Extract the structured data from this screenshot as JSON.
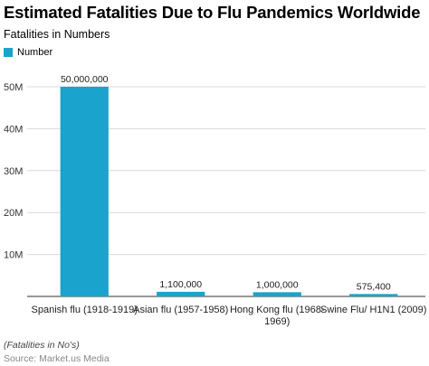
{
  "title": "Estimated Fatalities Due to Flu Pandemics Worldwide",
  "subtitle": "Fatalities in Numbers",
  "footnote": "(Fatalities in No's)",
  "source": "Source: Market.us Media",
  "colors": {
    "bar": "#1aa3cc",
    "grid": "#d9d9d9",
    "axis": "#333333"
  },
  "chart_data": {
    "type": "bar",
    "categories": [
      [
        "Spanish flu (1918-1919)"
      ],
      [
        "Asian flu (1957-1958)"
      ],
      [
        "Hong Kong flu (1968-",
        "1969)"
      ],
      [
        "Swine Flu/ H1N1 (2009)"
      ]
    ],
    "series": [
      {
        "name": "Number",
        "values": [
          50000000,
          1100000,
          1000000,
          575400
        ],
        "labels": [
          "50,000,000",
          "1,100,000",
          "1,000,000",
          "575,400"
        ]
      }
    ],
    "ylim": [
      0,
      50000000
    ],
    "yticks": [
      10000000,
      20000000,
      30000000,
      40000000,
      50000000
    ],
    "ytick_labels": [
      "10M",
      "20M",
      "30M",
      "40M",
      "50M"
    ],
    "grid": true,
    "legend": "top-left"
  }
}
